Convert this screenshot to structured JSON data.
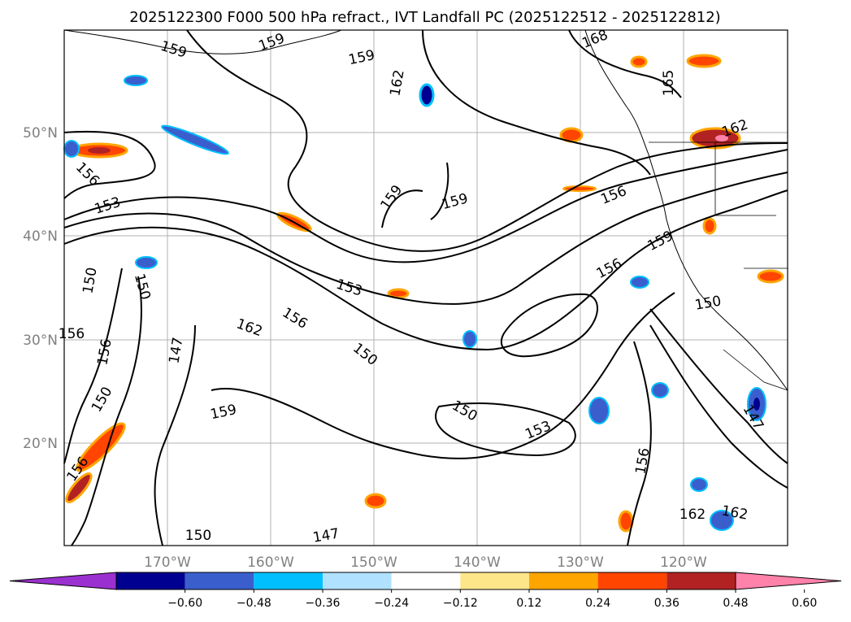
{
  "title": "2025122300 F000 500 hPa refract., IVT Landfall PC (2025122512 - 2025122812)",
  "lat_labels": [
    "50°N",
    "40°N",
    "30°N",
    "20°N"
  ],
  "lon_labels": [
    "170°W",
    "160°W",
    "150°W",
    "140°W",
    "130°W",
    "120°W"
  ],
  "contour_labels": [
    "159",
    "159",
    "159",
    "162",
    "168",
    "165",
    "162",
    "156",
    "153",
    "159",
    "159",
    "156",
    "159",
    "156",
    "153",
    "156",
    "162",
    "150",
    "150",
    "159",
    "150",
    "153",
    "150",
    "162",
    "162",
    "156",
    "150",
    "150",
    "147",
    "147",
    "156",
    "150",
    "156",
    "147",
    "156"
  ],
  "colorbar": {
    "ticks": [
      "−0.60",
      "−0.48",
      "−0.36",
      "−0.24",
      "−0.12",
      "0.12",
      "0.24",
      "0.36",
      "0.48",
      "0.60"
    ],
    "colors": [
      "#9b30d0",
      "#000090",
      "#3a5fcd",
      "#00bfff",
      "#b0e2ff",
      "#ffffff",
      "#fde68a",
      "#ffa500",
      "#ff4500",
      "#b22222",
      "#ff82ab"
    ]
  },
  "colors": {
    "grid": "#b0b0b0",
    "axis_text": "#808080"
  }
}
